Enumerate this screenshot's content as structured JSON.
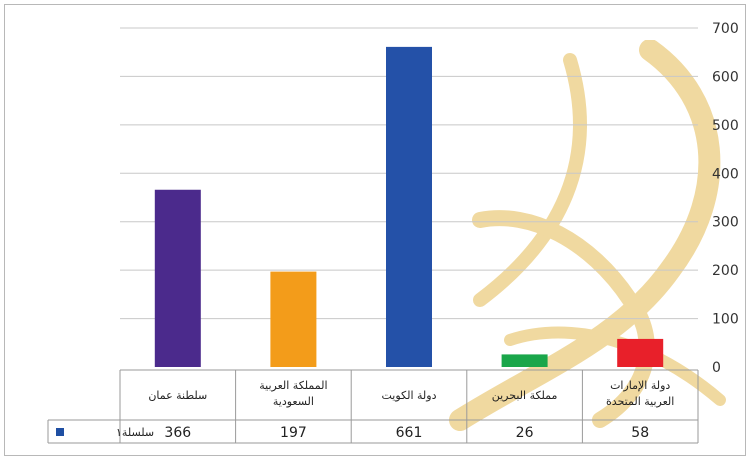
{
  "chart_data": {
    "type": "bar",
    "categories": [
      [
        "سلطنة عمان"
      ],
      [
        "المملكة العربية",
        "السعودية"
      ],
      [
        "دولة الكويت"
      ],
      [
        "مملكة البحرين"
      ],
      [
        "دولة الإمارات",
        "العربية المتحدة"
      ]
    ],
    "series": [
      {
        "name": "سلسلة١",
        "values": [
          366,
          197,
          661,
          26,
          58
        ],
        "value_labels": [
          "366",
          "197",
          "661",
          "26",
          "58"
        ],
        "colors": [
          "#4b2a8c",
          "#f39c1a",
          "#2451a8",
          "#1aa64a",
          "#e8202a"
        ]
      }
    ],
    "legend_color": "#1f4fa3",
    "ylim": [
      0,
      700
    ],
    "yticks": [
      "0",
      "100",
      "200",
      "300",
      "400",
      "500",
      "600",
      "700"
    ],
    "y_axis_side": "right",
    "grid": true,
    "data_table": true
  },
  "colors": {
    "grid": "#c8c8c8",
    "watermark": "#f0d9a0"
  }
}
